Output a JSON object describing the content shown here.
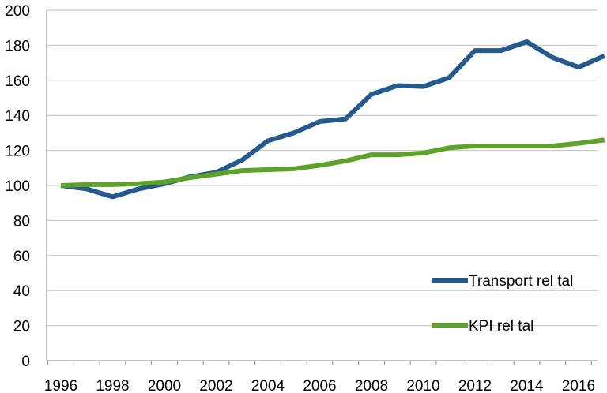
{
  "chart_data": {
    "type": "line",
    "x": [
      1996,
      1997,
      1998,
      1999,
      2000,
      2001,
      2002,
      2003,
      2004,
      2005,
      2006,
      2007,
      2008,
      2009,
      2010,
      2011,
      2012,
      2013,
      2014,
      2015,
      2016,
      2017
    ],
    "x_tick_labels": [
      "1996",
      "1998",
      "2000",
      "2002",
      "2004",
      "2006",
      "2008",
      "2010",
      "2012",
      "2014",
      "2016"
    ],
    "y_tick_labels": [
      "0",
      "20",
      "40",
      "60",
      "80",
      "100",
      "120",
      "140",
      "160",
      "180",
      "200"
    ],
    "ylim": [
      0,
      200
    ],
    "grid": true,
    "legend_position": "bottom-right",
    "title": "",
    "xlabel": "",
    "ylabel": "",
    "series": [
      {
        "name": "Transport rel tal",
        "color": "#245A8E",
        "values": [
          100,
          98,
          93.5,
          98,
          101,
          105,
          107.5,
          114.5,
          125.5,
          130,
          136.5,
          138,
          152,
          157,
          156.5,
          161.5,
          177,
          177,
          182,
          173,
          167.5,
          174
        ]
      },
      {
        "name": "KPI rel tal",
        "color": "#5EA329",
        "values": [
          100,
          100.5,
          100.5,
          101,
          102,
          104.5,
          106.5,
          108.5,
          109,
          109.5,
          111.5,
          114,
          117.5,
          117.5,
          118.5,
          121.5,
          122.5,
          122.5,
          122.5,
          122.5,
          124,
          126
        ]
      }
    ]
  }
}
